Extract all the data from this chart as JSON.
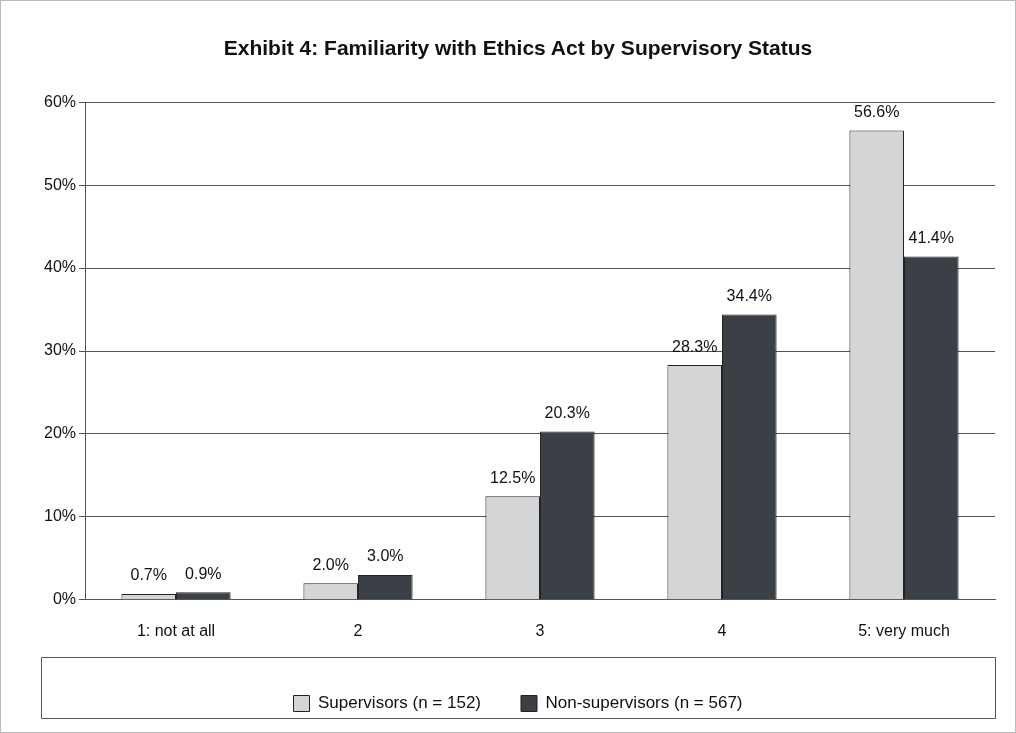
{
  "chart_data": {
    "type": "bar",
    "title": "Exhibit 4: Familiarity with Ethics Act by Supervisory Status",
    "categories": [
      "1: not at all",
      "2",
      "3",
      "4",
      "5: very much"
    ],
    "series": [
      {
        "name": "Supervisors (n = 152)",
        "color": "#d4d5d7",
        "values": [
          0.7,
          2.0,
          12.5,
          28.3,
          56.6
        ],
        "value_labels": [
          "0.7%",
          "2.0%",
          "12.5%",
          "28.3%",
          "56.6%"
        ]
      },
      {
        "name": "Non-supervisors (n = 567)",
        "color": "#3b4046",
        "values": [
          0.9,
          3.0,
          20.3,
          34.4,
          41.4
        ],
        "value_labels": [
          "0.9%",
          "3.0%",
          "20.3%",
          "34.4%",
          "41.4%"
        ]
      }
    ],
    "ylim": [
      0,
      60
    ],
    "yticks": [
      {
        "value": 0,
        "label": "0%"
      },
      {
        "value": 10,
        "label": "10%"
      },
      {
        "value": 20,
        "label": "20%"
      },
      {
        "value": 30,
        "label": "30%"
      },
      {
        "value": 40,
        "label": "40%"
      },
      {
        "value": 50,
        "label": "50%"
      },
      {
        "value": 60,
        "label": "60%"
      }
    ],
    "grid": "y",
    "legend": "bottom"
  }
}
